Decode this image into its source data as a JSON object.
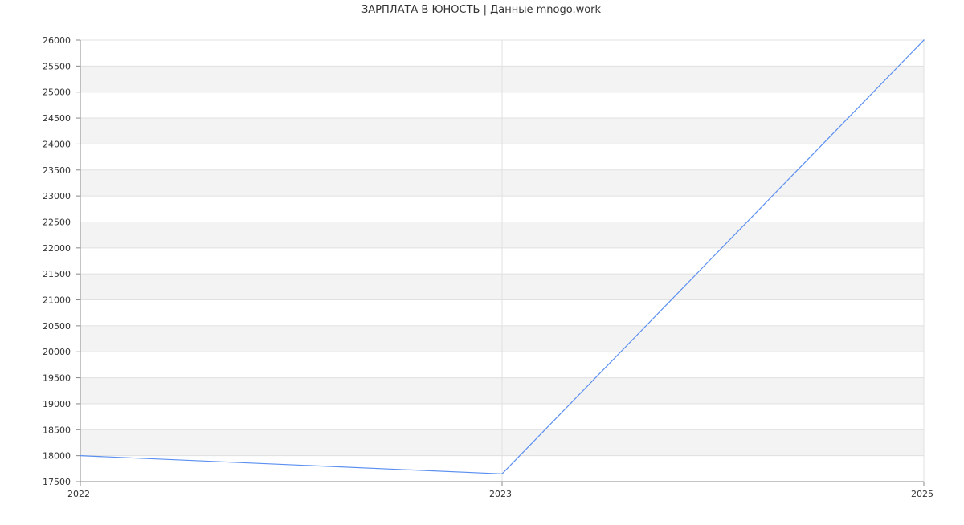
{
  "chart_data": {
    "type": "line",
    "title": "ЗАРПЛАТА В ЮНОСТЬ | Данные mnogo.work",
    "xlabel": "",
    "ylabel": "",
    "categories": [
      "2022",
      "2023",
      "2025"
    ],
    "series": [
      {
        "values": [
          18000,
          17650,
          26000
        ],
        "color": "#5b8ff0"
      }
    ],
    "ylim": [
      17500,
      26000
    ],
    "yticks": [
      17500,
      18000,
      18500,
      19000,
      19500,
      20000,
      20500,
      21000,
      21500,
      22000,
      22500,
      23000,
      23500,
      24000,
      24500,
      25000,
      25500,
      26000
    ],
    "grid": true,
    "band_color": "#f3f3f3",
    "grid_color": "#e0e0e0",
    "axis_color": "#888888"
  }
}
